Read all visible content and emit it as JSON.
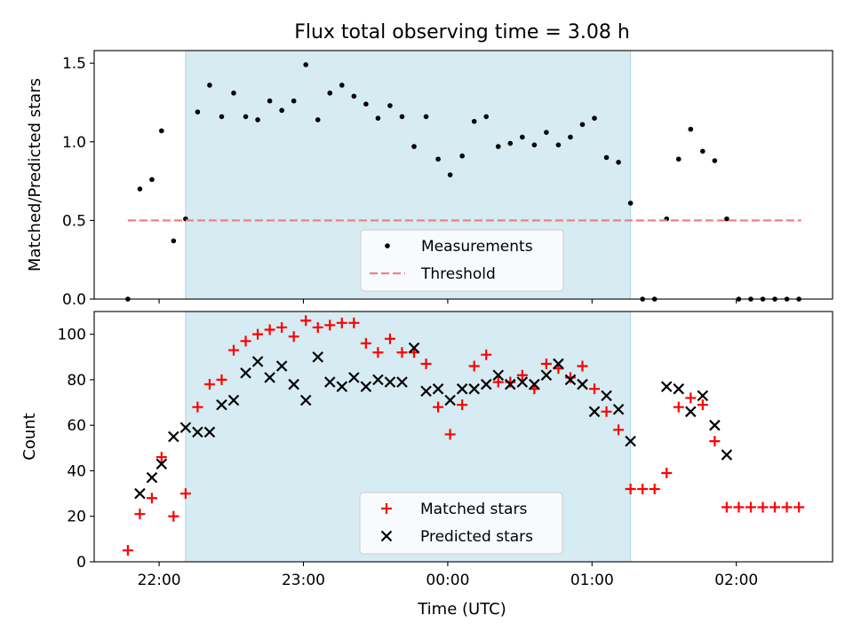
{
  "figure": {
    "title": "Flux total observing time = 3.08 h",
    "xlabel": "Time (UTC)"
  },
  "colors": {
    "shade": "#add8e6",
    "measurement": "#000000",
    "threshold": "#f08080",
    "matched": "#ff0000",
    "predicted": "#000000"
  },
  "chart_data": [
    {
      "type": "scatter",
      "ylabel": "Matched/Predicted stars",
      "ylim": [
        0,
        1.58
      ],
      "yticks": [
        0.0,
        0.5,
        1.0,
        1.5
      ],
      "ytick_labels": [
        "0.0",
        "0.5",
        "1.0",
        "1.5"
      ],
      "xlim": [
        "21:33",
        "02:40"
      ],
      "xticks": [
        "22:00",
        "23:00",
        "00:00",
        "01:00",
        "02:00"
      ],
      "shaded_span": [
        "22:11",
        "01:16"
      ],
      "legend_position": "lower-center",
      "series": [
        {
          "name": "Measurements",
          "marker": "dot",
          "points": [
            [
              "21:47",
              0.0
            ],
            [
              "21:52",
              0.7
            ],
            [
              "21:57",
              0.76
            ],
            [
              "22:01",
              1.07
            ],
            [
              "22:06",
              0.37
            ],
            [
              "22:11",
              0.51
            ],
            [
              "22:16",
              1.19
            ],
            [
              "22:21",
              1.36
            ],
            [
              "22:26",
              1.16
            ],
            [
              "22:31",
              1.31
            ],
            [
              "22:36",
              1.16
            ],
            [
              "22:41",
              1.14
            ],
            [
              "22:46",
              1.26
            ],
            [
              "22:51",
              1.2
            ],
            [
              "22:56",
              1.26
            ],
            [
              "23:01",
              1.49
            ],
            [
              "23:06",
              1.14
            ],
            [
              "23:11",
              1.31
            ],
            [
              "23:16",
              1.36
            ],
            [
              "23:21",
              1.29
            ],
            [
              "23:26",
              1.24
            ],
            [
              "23:31",
              1.15
            ],
            [
              "23:36",
              1.23
            ],
            [
              "23:41",
              1.16
            ],
            [
              "23:46",
              0.97
            ],
            [
              "23:51",
              1.16
            ],
            [
              "23:56",
              0.89
            ],
            [
              "00:01",
              0.79
            ],
            [
              "00:06",
              0.91
            ],
            [
              "00:11",
              1.13
            ],
            [
              "00:16",
              1.16
            ],
            [
              "00:21",
              0.97
            ],
            [
              "00:26",
              0.99
            ],
            [
              "00:31",
              1.03
            ],
            [
              "00:36",
              0.98
            ],
            [
              "00:41",
              1.06
            ],
            [
              "00:46",
              0.98
            ],
            [
              "00:51",
              1.03
            ],
            [
              "00:56",
              1.11
            ],
            [
              "01:01",
              1.15
            ],
            [
              "01:06",
              0.9
            ],
            [
              "01:11",
              0.87
            ],
            [
              "01:16",
              0.61
            ],
            [
              "01:21",
              0.0
            ],
            [
              "01:26",
              0.0
            ],
            [
              "01:31",
              0.51
            ],
            [
              "01:36",
              0.89
            ],
            [
              "01:41",
              1.08
            ],
            [
              "01:46",
              0.94
            ],
            [
              "01:51",
              0.88
            ],
            [
              "01:56",
              0.51
            ],
            [
              "02:01",
              0.0
            ],
            [
              "02:06",
              0.0
            ],
            [
              "02:11",
              0.0
            ],
            [
              "02:16",
              0.0
            ],
            [
              "02:21",
              0.0
            ],
            [
              "02:26",
              0.0
            ]
          ]
        },
        {
          "name": "Threshold",
          "marker": "dashed-line",
          "points": [
            [
              "21:47",
              0.5
            ],
            [
              "02:27",
              0.5
            ]
          ]
        }
      ]
    },
    {
      "type": "scatter",
      "ylabel": "Count",
      "ylim": [
        0,
        110
      ],
      "yticks": [
        0,
        20,
        40,
        60,
        80,
        100
      ],
      "ytick_labels": [
        "0",
        "20",
        "40",
        "60",
        "80",
        "100"
      ],
      "xlim": [
        "21:33",
        "02:40"
      ],
      "xticks": [
        "22:00",
        "23:00",
        "00:00",
        "01:00",
        "02:00"
      ],
      "xtick_labels": [
        "22:00",
        "23:00",
        "00:00",
        "01:00",
        "02:00"
      ],
      "shaded_span": [
        "22:11",
        "01:16"
      ],
      "legend_position": "lower-center",
      "series": [
        {
          "name": "Matched stars",
          "marker": "plus",
          "points": [
            [
              "21:47",
              5
            ],
            [
              "21:52",
              21
            ],
            [
              "21:57",
              28
            ],
            [
              "22:01",
              46
            ],
            [
              "22:06",
              20
            ],
            [
              "22:11",
              30
            ],
            [
              "22:16",
              68
            ],
            [
              "22:21",
              78
            ],
            [
              "22:26",
              80
            ],
            [
              "22:31",
              93
            ],
            [
              "22:36",
              97
            ],
            [
              "22:41",
              100
            ],
            [
              "22:46",
              102
            ],
            [
              "22:51",
              103
            ],
            [
              "22:56",
              99
            ],
            [
              "23:01",
              106
            ],
            [
              "23:06",
              103
            ],
            [
              "23:11",
              104
            ],
            [
              "23:16",
              105
            ],
            [
              "23:21",
              105
            ],
            [
              "23:26",
              96
            ],
            [
              "23:31",
              92
            ],
            [
              "23:36",
              98
            ],
            [
              "23:41",
              92
            ],
            [
              "23:46",
              92
            ],
            [
              "23:51",
              87
            ],
            [
              "23:56",
              68
            ],
            [
              "00:01",
              56
            ],
            [
              "00:06",
              69
            ],
            [
              "00:11",
              86
            ],
            [
              "00:16",
              91
            ],
            [
              "00:21",
              79
            ],
            [
              "00:26",
              79
            ],
            [
              "00:31",
              82
            ],
            [
              "00:36",
              76
            ],
            [
              "00:41",
              87
            ],
            [
              "00:46",
              85
            ],
            [
              "00:51",
              81
            ],
            [
              "00:56",
              86
            ],
            [
              "01:01",
              76
            ],
            [
              "01:06",
              66
            ],
            [
              "01:11",
              58
            ],
            [
              "01:16",
              32
            ],
            [
              "01:21",
              32
            ],
            [
              "01:26",
              32
            ],
            [
              "01:31",
              39
            ],
            [
              "01:36",
              68
            ],
            [
              "01:41",
              72
            ],
            [
              "01:46",
              69
            ],
            [
              "01:51",
              53
            ],
            [
              "01:56",
              24
            ],
            [
              "02:01",
              24
            ],
            [
              "02:06",
              24
            ],
            [
              "02:11",
              24
            ],
            [
              "02:16",
              24
            ],
            [
              "02:21",
              24
            ],
            [
              "02:26",
              24
            ]
          ]
        },
        {
          "name": "Predicted stars",
          "marker": "x",
          "points": [
            [
              "21:52",
              30
            ],
            [
              "21:57",
              37
            ],
            [
              "22:01",
              43
            ],
            [
              "22:06",
              55
            ],
            [
              "22:11",
              59
            ],
            [
              "22:16",
              57
            ],
            [
              "22:21",
              57
            ],
            [
              "22:26",
              69
            ],
            [
              "22:31",
              71
            ],
            [
              "22:36",
              83
            ],
            [
              "22:41",
              88
            ],
            [
              "22:46",
              81
            ],
            [
              "22:51",
              86
            ],
            [
              "22:56",
              78
            ],
            [
              "23:01",
              71
            ],
            [
              "23:06",
              90
            ],
            [
              "23:11",
              79
            ],
            [
              "23:16",
              77
            ],
            [
              "23:21",
              81
            ],
            [
              "23:26",
              77
            ],
            [
              "23:31",
              80
            ],
            [
              "23:36",
              79
            ],
            [
              "23:41",
              79
            ],
            [
              "23:46",
              94
            ],
            [
              "23:51",
              75
            ],
            [
              "23:56",
              76
            ],
            [
              "00:01",
              71
            ],
            [
              "00:06",
              76
            ],
            [
              "00:11",
              76
            ],
            [
              "00:16",
              78
            ],
            [
              "00:21",
              82
            ],
            [
              "00:26",
              78
            ],
            [
              "00:31",
              79
            ],
            [
              "00:36",
              78
            ],
            [
              "00:41",
              82
            ],
            [
              "00:46",
              87
            ],
            [
              "00:51",
              80
            ],
            [
              "00:56",
              78
            ],
            [
              "01:01",
              66
            ],
            [
              "01:06",
              73
            ],
            [
              "01:11",
              67
            ],
            [
              "01:16",
              53
            ],
            [
              "01:31",
              77
            ],
            [
              "01:36",
              76
            ],
            [
              "01:41",
              66
            ],
            [
              "01:46",
              73
            ],
            [
              "01:51",
              60
            ],
            [
              "01:56",
              47
            ]
          ]
        }
      ]
    }
  ]
}
